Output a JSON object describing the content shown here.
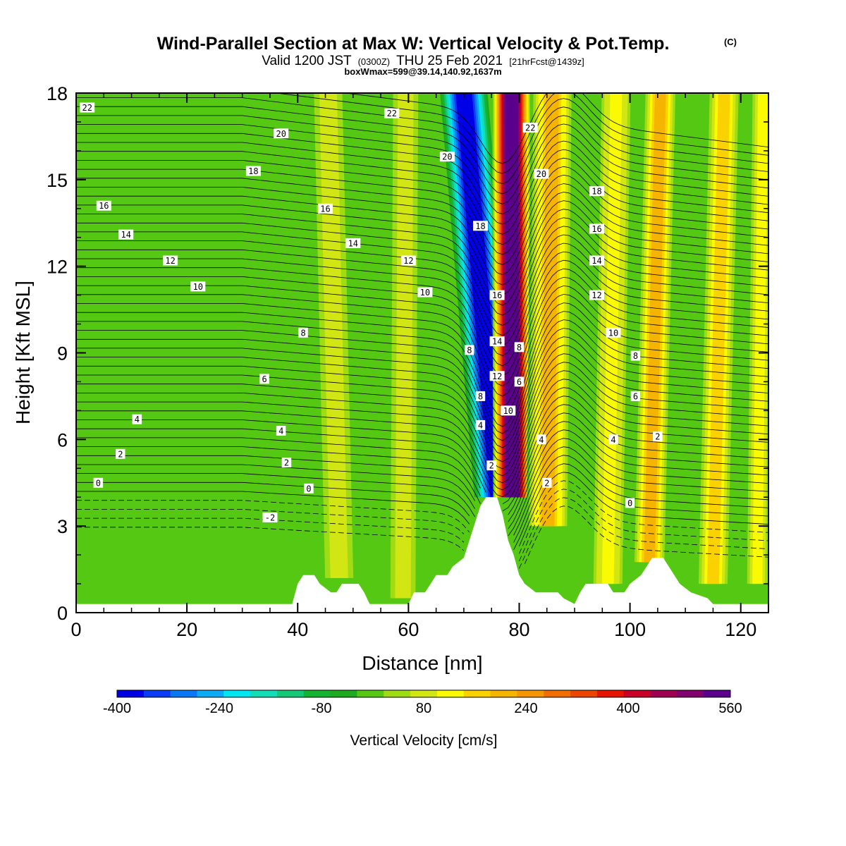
{
  "header": {
    "title": "Wind-Parallel Section at Max W: Vertical Velocity & Pot.Temp.",
    "copyright_mark": "(C)",
    "valid_prefix": "Valid 1200 JST",
    "valid_utc": "(0300Z)",
    "valid_date": "THU 25 Feb 2021",
    "forecast_info": "[21hrFcst@1439z]",
    "box_info": "boxWmax=599@39.14,140.92,1637m"
  },
  "colorbar": {
    "label": "Vertical Velocity [cm/s]",
    "ticks": [
      "-400",
      "-240",
      "-80",
      "80",
      "240",
      "400",
      "560"
    ],
    "colors": [
      "#0000e6",
      "#0a3cf5",
      "#0a78f5",
      "#0aaaf5",
      "#00e6f0",
      "#14dcb4",
      "#14c878",
      "#14b432",
      "#1eaa1e",
      "#55c814",
      "#a0dc14",
      "#d2e614",
      "#fafa00",
      "#fad200",
      "#f5b400",
      "#f59600",
      "#f06e00",
      "#eb4600",
      "#e61400",
      "#c80028",
      "#a00050",
      "#82006e",
      "#5a008c"
    ]
  },
  "chart_data": {
    "type": "heatmap",
    "xlabel": "Distance [nm]",
    "ylabel": "Height [Kft MSL]",
    "xlim": [
      0,
      125
    ],
    "ylim": [
      0,
      18
    ],
    "x_ticks": [
      "0",
      "20",
      "40",
      "60",
      "80",
      "100",
      "120"
    ],
    "y_ticks": [
      "0",
      "3",
      "6",
      "9",
      "12",
      "15",
      "18"
    ],
    "background_value_cm_s": -40,
    "velocity_bands": [
      {
        "x_center": 75.5,
        "value": -400,
        "x_bottom": 76.2,
        "x_top": 70.0,
        "half_width": 2.2,
        "z_bottom": 4.0,
        "z_top": 18
      },
      {
        "x_center": 79.5,
        "value": 560,
        "x_bottom": 78.8,
        "x_top": 78.6,
        "half_width": 1.8,
        "z_bottom": 4.0,
        "z_top": 18
      },
      {
        "x_center": 85.5,
        "value": 180,
        "x_bottom": 85.2,
        "x_top": 86.0,
        "half_width": 2.0,
        "z_bottom": 3.0,
        "z_top": 18
      },
      {
        "x_center": 47,
        "value": 40,
        "x_bottom": 47.5,
        "x_top": 45.5,
        "half_width": 1.8,
        "z_bottom": 1.2,
        "z_top": 18
      },
      {
        "x_center": 59,
        "value": 40,
        "x_bottom": 59.0,
        "x_top": 59.5,
        "half_width": 1.6,
        "z_bottom": 0.5,
        "z_top": 18
      },
      {
        "x_center": 96,
        "value": 100,
        "x_bottom": 96.0,
        "x_top": 97.5,
        "half_width": 1.6,
        "z_bottom": 1.0,
        "z_top": 18
      },
      {
        "x_center": 104,
        "value": 160,
        "x_bottom": 103.5,
        "x_top": 105.5,
        "half_width": 1.6,
        "z_bottom": 1.0,
        "z_top": 18
      },
      {
        "x_center": 115,
        "value": 130,
        "x_bottom": 115.0,
        "x_top": 117.0,
        "half_width": 1.6,
        "z_bottom": 1.0,
        "z_top": 18
      },
      {
        "x_center": 123,
        "value": 90,
        "x_bottom": 123.0,
        "x_top": 124.0,
        "half_width": 1.2,
        "z_bottom": 1.0,
        "z_top": 18
      }
    ],
    "theta_contours": {
      "levels": [
        -2,
        0,
        2,
        4,
        6,
        8,
        10,
        12,
        14,
        16,
        18,
        20,
        22
      ],
      "line_labels": [
        {
          "text": "22",
          "x": 2,
          "y": 17.5
        },
        {
          "text": "22",
          "x": 57,
          "y": 17.3
        },
        {
          "text": "22",
          "x": 82,
          "y": 16.8
        },
        {
          "text": "20",
          "x": 37,
          "y": 16.6
        },
        {
          "text": "20",
          "x": 67,
          "y": 15.8
        },
        {
          "text": "20",
          "x": 84,
          "y": 15.2
        },
        {
          "text": "18",
          "x": 32,
          "y": 15.3
        },
        {
          "text": "18",
          "x": 73,
          "y": 13.4
        },
        {
          "text": "18",
          "x": 94,
          "y": 14.6
        },
        {
          "text": "16",
          "x": 5,
          "y": 14.1
        },
        {
          "text": "16",
          "x": 45,
          "y": 14.0
        },
        {
          "text": "16",
          "x": 76,
          "y": 11.0
        },
        {
          "text": "16",
          "x": 94,
          "y": 13.3
        },
        {
          "text": "14",
          "x": 9,
          "y": 13.1
        },
        {
          "text": "14",
          "x": 50,
          "y": 12.8
        },
        {
          "text": "14",
          "x": 76,
          "y": 9.4
        },
        {
          "text": "14",
          "x": 94,
          "y": 12.2
        },
        {
          "text": "12",
          "x": 17,
          "y": 12.2
        },
        {
          "text": "12",
          "x": 60,
          "y": 12.2
        },
        {
          "text": "12",
          "x": 76,
          "y": 8.2
        },
        {
          "text": "12",
          "x": 94,
          "y": 11.0
        },
        {
          "text": "10",
          "x": 22,
          "y": 11.3
        },
        {
          "text": "10",
          "x": 63,
          "y": 11.1
        },
        {
          "text": "10",
          "x": 78,
          "y": 7.0
        },
        {
          "text": "10",
          "x": 97,
          "y": 9.7
        },
        {
          "text": "8",
          "x": 41,
          "y": 9.7
        },
        {
          "text": "8",
          "x": 71,
          "y": 9.1
        },
        {
          "text": "8",
          "x": 73,
          "y": 7.5
        },
        {
          "text": "8",
          "x": 80,
          "y": 9.2
        },
        {
          "text": "8",
          "x": 101,
          "y": 8.9
        },
        {
          "text": "6",
          "x": 34,
          "y": 8.1
        },
        {
          "text": "6",
          "x": 80,
          "y": 8.0
        },
        {
          "text": "6",
          "x": 101,
          "y": 7.5
        },
        {
          "text": "4",
          "x": 11,
          "y": 6.7
        },
        {
          "text": "4",
          "x": 37,
          "y": 6.3
        },
        {
          "text": "4",
          "x": 73,
          "y": 6.5
        },
        {
          "text": "4",
          "x": 84,
          "y": 6.0
        },
        {
          "text": "4",
          "x": 97,
          "y": 6.0
        },
        {
          "text": "2",
          "x": 8,
          "y": 5.5
        },
        {
          "text": "2",
          "x": 38,
          "y": 5.2
        },
        {
          "text": "2",
          "x": 75,
          "y": 5.1
        },
        {
          "text": "2",
          "x": 85,
          "y": 4.5
        },
        {
          "text": "2",
          "x": 105,
          "y": 6.1
        },
        {
          "text": "0",
          "x": 4,
          "y": 4.5
        },
        {
          "text": "0",
          "x": 42,
          "y": 4.3
        },
        {
          "text": "0",
          "x": 100,
          "y": 3.8
        },
        {
          "text": "-2",
          "x": 35,
          "y": 3.3
        }
      ]
    },
    "terrain_kft": [
      [
        0,
        0.3
      ],
      [
        20,
        0.3
      ],
      [
        39,
        0.3
      ],
      [
        40,
        1.0
      ],
      [
        41,
        1.3
      ],
      [
        43,
        1.3
      ],
      [
        44,
        1.0
      ],
      [
        46,
        0.7
      ],
      [
        47,
        0.7
      ],
      [
        48,
        1.0
      ],
      [
        51,
        1.0
      ],
      [
        52,
        0.7
      ],
      [
        53,
        0.3
      ],
      [
        60,
        0.3
      ],
      [
        61,
        0.7
      ],
      [
        63,
        0.7
      ],
      [
        64,
        1.0
      ],
      [
        65,
        1.3
      ],
      [
        67,
        1.3
      ],
      [
        68,
        1.6
      ],
      [
        70,
        1.9
      ],
      [
        71,
        2.5
      ],
      [
        72,
        3.1
      ],
      [
        73,
        3.7
      ],
      [
        74,
        4.0
      ],
      [
        76,
        4.0
      ],
      [
        77,
        3.4
      ],
      [
        78,
        2.5
      ],
      [
        79,
        2.0
      ],
      [
        80,
        1.3
      ],
      [
        81,
        1.0
      ],
      [
        83,
        0.7
      ],
      [
        87,
        0.7
      ],
      [
        88,
        0.5
      ],
      [
        90,
        0.3
      ],
      [
        91,
        0.7
      ],
      [
        92,
        1.0
      ],
      [
        96,
        1.0
      ],
      [
        97,
        0.7
      ],
      [
        99,
        0.7
      ],
      [
        100,
        1.0
      ],
      [
        102,
        1.3
      ],
      [
        103,
        1.6
      ],
      [
        104,
        1.9
      ],
      [
        106,
        1.9
      ],
      [
        107,
        1.6
      ],
      [
        108,
        1.3
      ],
      [
        109,
        1.0
      ],
      [
        111,
        0.7
      ],
      [
        114,
        0.5
      ],
      [
        115,
        0.3
      ],
      [
        125,
        0.3
      ]
    ]
  }
}
